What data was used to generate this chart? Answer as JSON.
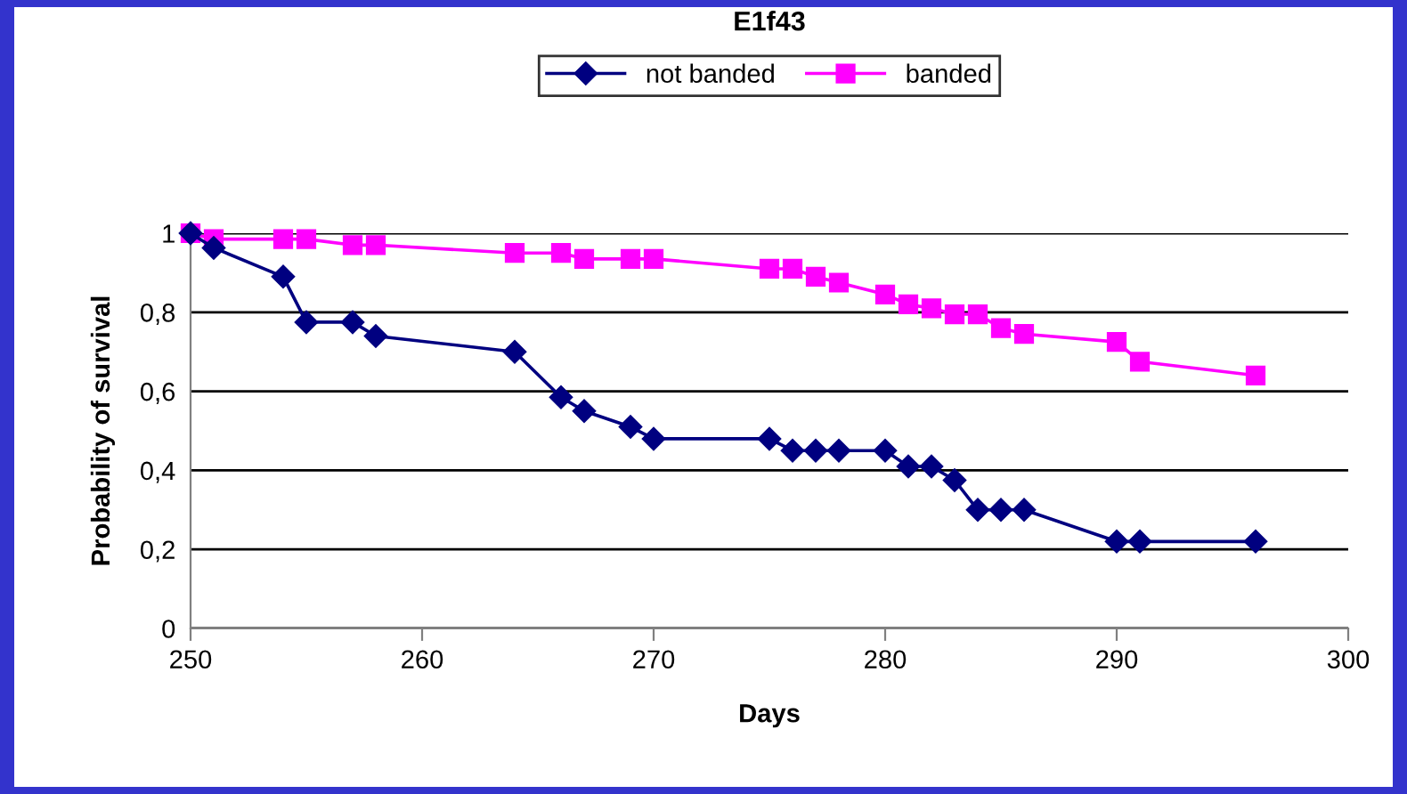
{
  "chart_data": {
    "type": "line",
    "title": "E1f43",
    "xlabel": "Days",
    "ylabel": "Probability of survival",
    "xlim": [
      250,
      300
    ],
    "xticks": [
      250,
      260,
      270,
      280,
      290,
      300
    ],
    "ylim": [
      0,
      1
    ],
    "yticks": [
      {
        "value": 0,
        "label": "0"
      },
      {
        "value": 0.2,
        "label": "0,2"
      },
      {
        "value": 0.4,
        "label": "0,4"
      },
      {
        "value": 0.6,
        "label": "0,6"
      },
      {
        "value": 0.8,
        "label": "0,8"
      },
      {
        "value": 1,
        "label": "1"
      }
    ],
    "grid": "y",
    "legend": "top",
    "line_style": "solid",
    "series": [
      {
        "name": "not banded",
        "color": "#000080",
        "marker": "diamond",
        "x": [
          250,
          251,
          254,
          255,
          257,
          258,
          264,
          266,
          267,
          269,
          270,
          275,
          276,
          277,
          278,
          280,
          281,
          282,
          283,
          284,
          285,
          286,
          290,
          291,
          296
        ],
        "values": [
          1.0,
          0.963,
          0.89,
          0.775,
          0.775,
          0.74,
          0.7,
          0.585,
          0.55,
          0.51,
          0.48,
          0.48,
          0.45,
          0.45,
          0.45,
          0.45,
          0.41,
          0.41,
          0.375,
          0.3,
          0.3,
          0.3,
          0.22,
          0.22,
          0.22
        ]
      },
      {
        "name": "banded",
        "color": "#ff00ff",
        "marker": "square",
        "x": [
          250,
          251,
          254,
          255,
          257,
          258,
          264,
          266,
          267,
          269,
          270,
          275,
          276,
          277,
          278,
          280,
          281,
          282,
          283,
          284,
          285,
          286,
          290,
          291,
          296
        ],
        "values": [
          1.0,
          0.985,
          0.985,
          0.985,
          0.97,
          0.97,
          0.95,
          0.95,
          0.935,
          0.935,
          0.935,
          0.91,
          0.91,
          0.89,
          0.875,
          0.845,
          0.82,
          0.81,
          0.795,
          0.795,
          0.76,
          0.745,
          0.725,
          0.675,
          0.64
        ]
      }
    ]
  }
}
